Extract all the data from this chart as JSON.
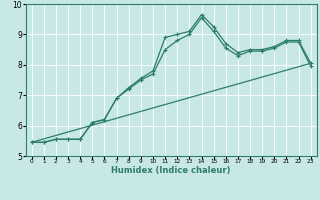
{
  "xlabel": "Humidex (Indice chaleur)",
  "bg_color": "#c8e8e8",
  "grid_color": "#ffffff",
  "line_color": "#2d7d6b",
  "xlim": [
    -0.5,
    23.5
  ],
  "ylim": [
    5,
    10
  ],
  "yticks": [
    5,
    6,
    7,
    8,
    9,
    10
  ],
  "xticks": [
    0,
    1,
    2,
    3,
    4,
    5,
    6,
    7,
    8,
    9,
    10,
    11,
    12,
    13,
    14,
    15,
    16,
    17,
    18,
    19,
    20,
    21,
    22,
    23
  ],
  "line1_x": [
    0,
    1,
    2,
    3,
    4,
    5,
    6,
    7,
    8,
    9,
    10,
    11,
    12,
    13,
    14,
    15,
    16,
    17,
    18,
    19,
    20,
    21,
    22,
    23
  ],
  "line1_y": [
    5.45,
    5.45,
    5.55,
    5.55,
    5.55,
    6.1,
    6.2,
    6.9,
    7.25,
    7.55,
    7.8,
    8.9,
    9.0,
    9.1,
    9.65,
    9.25,
    8.7,
    8.4,
    8.5,
    8.5,
    8.6,
    8.8,
    8.8,
    8.05
  ],
  "line2_x": [
    0,
    1,
    2,
    3,
    4,
    5,
    6,
    7,
    8,
    9,
    10,
    11,
    12,
    13,
    14,
    15,
    16,
    17,
    18,
    19,
    20,
    21,
    22,
    23
  ],
  "line2_y": [
    5.45,
    5.45,
    5.55,
    5.55,
    5.55,
    6.1,
    6.2,
    6.9,
    7.2,
    7.5,
    7.7,
    8.5,
    8.8,
    9.0,
    9.55,
    9.1,
    8.55,
    8.3,
    8.45,
    8.45,
    8.55,
    8.75,
    8.75,
    7.95
  ],
  "line3_x": [
    0,
    23
  ],
  "line3_y": [
    5.45,
    8.05
  ]
}
